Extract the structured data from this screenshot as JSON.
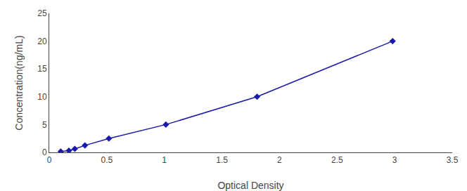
{
  "chart_data": {
    "type": "line",
    "x": [
      0.1,
      0.171,
      0.222,
      0.31,
      0.518,
      1.013,
      1.805,
      2.982
    ],
    "values": [
      0.156,
      0.312,
      0.625,
      1.25,
      2.5,
      5.0,
      10.0,
      20.0
    ],
    "color": "#1a1aaa",
    "marker": "diamond",
    "line_style": "solid",
    "xlabel": "Optical Density",
    "ylabel": "Concentration(ng/mL)",
    "xlim": [
      0,
      3.5
    ],
    "ylim": [
      0,
      25
    ],
    "xticks": [
      0,
      0.5,
      1,
      1.5,
      2,
      2.5,
      3,
      3.5
    ],
    "yticks": [
      0,
      5,
      10,
      15,
      20,
      25
    ],
    "grid": false
  }
}
